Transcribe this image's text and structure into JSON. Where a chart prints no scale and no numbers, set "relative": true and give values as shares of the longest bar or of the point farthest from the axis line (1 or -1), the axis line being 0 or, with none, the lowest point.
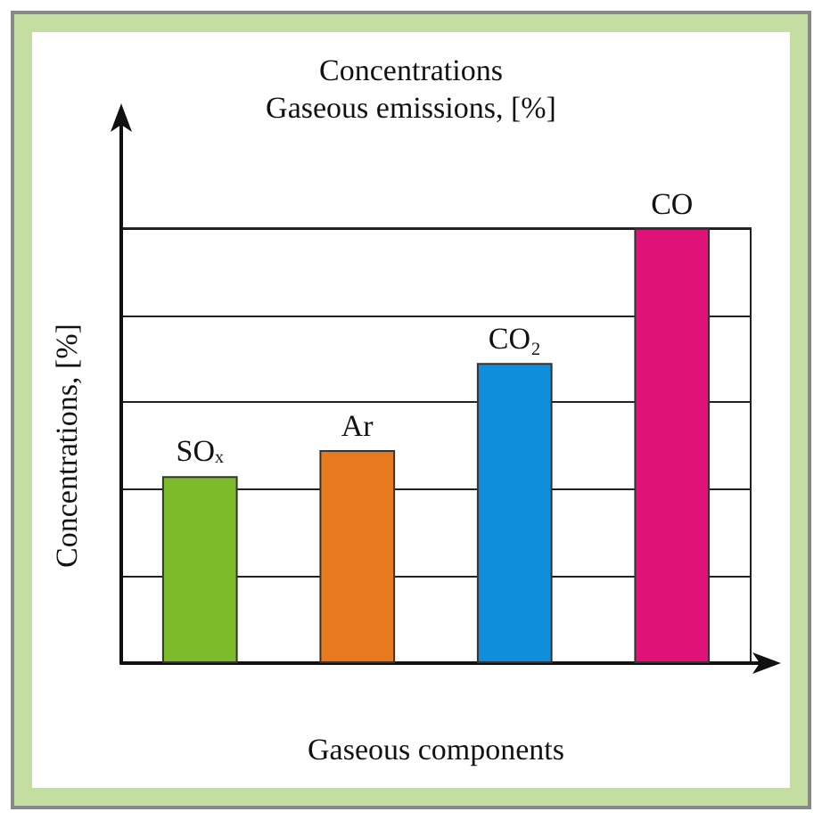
{
  "chart_data": {
    "type": "bar",
    "title": "Concentrations",
    "subtitle": "Gaseous emissions, [%]",
    "xlabel": "Gaseous components",
    "ylabel": "Concentrations, [%]",
    "categories": [
      "SO$_{x}$",
      "Ar",
      "CO₂",
      "CO"
    ],
    "values": [
      0.43,
      0.49,
      0.69,
      1
    ],
    "colors": [
      "#7cbb2c",
      "#e8791e",
      "#0f8fdb",
      "#e01279"
    ],
    "relative": true,
    "grid": "y"
  }
}
